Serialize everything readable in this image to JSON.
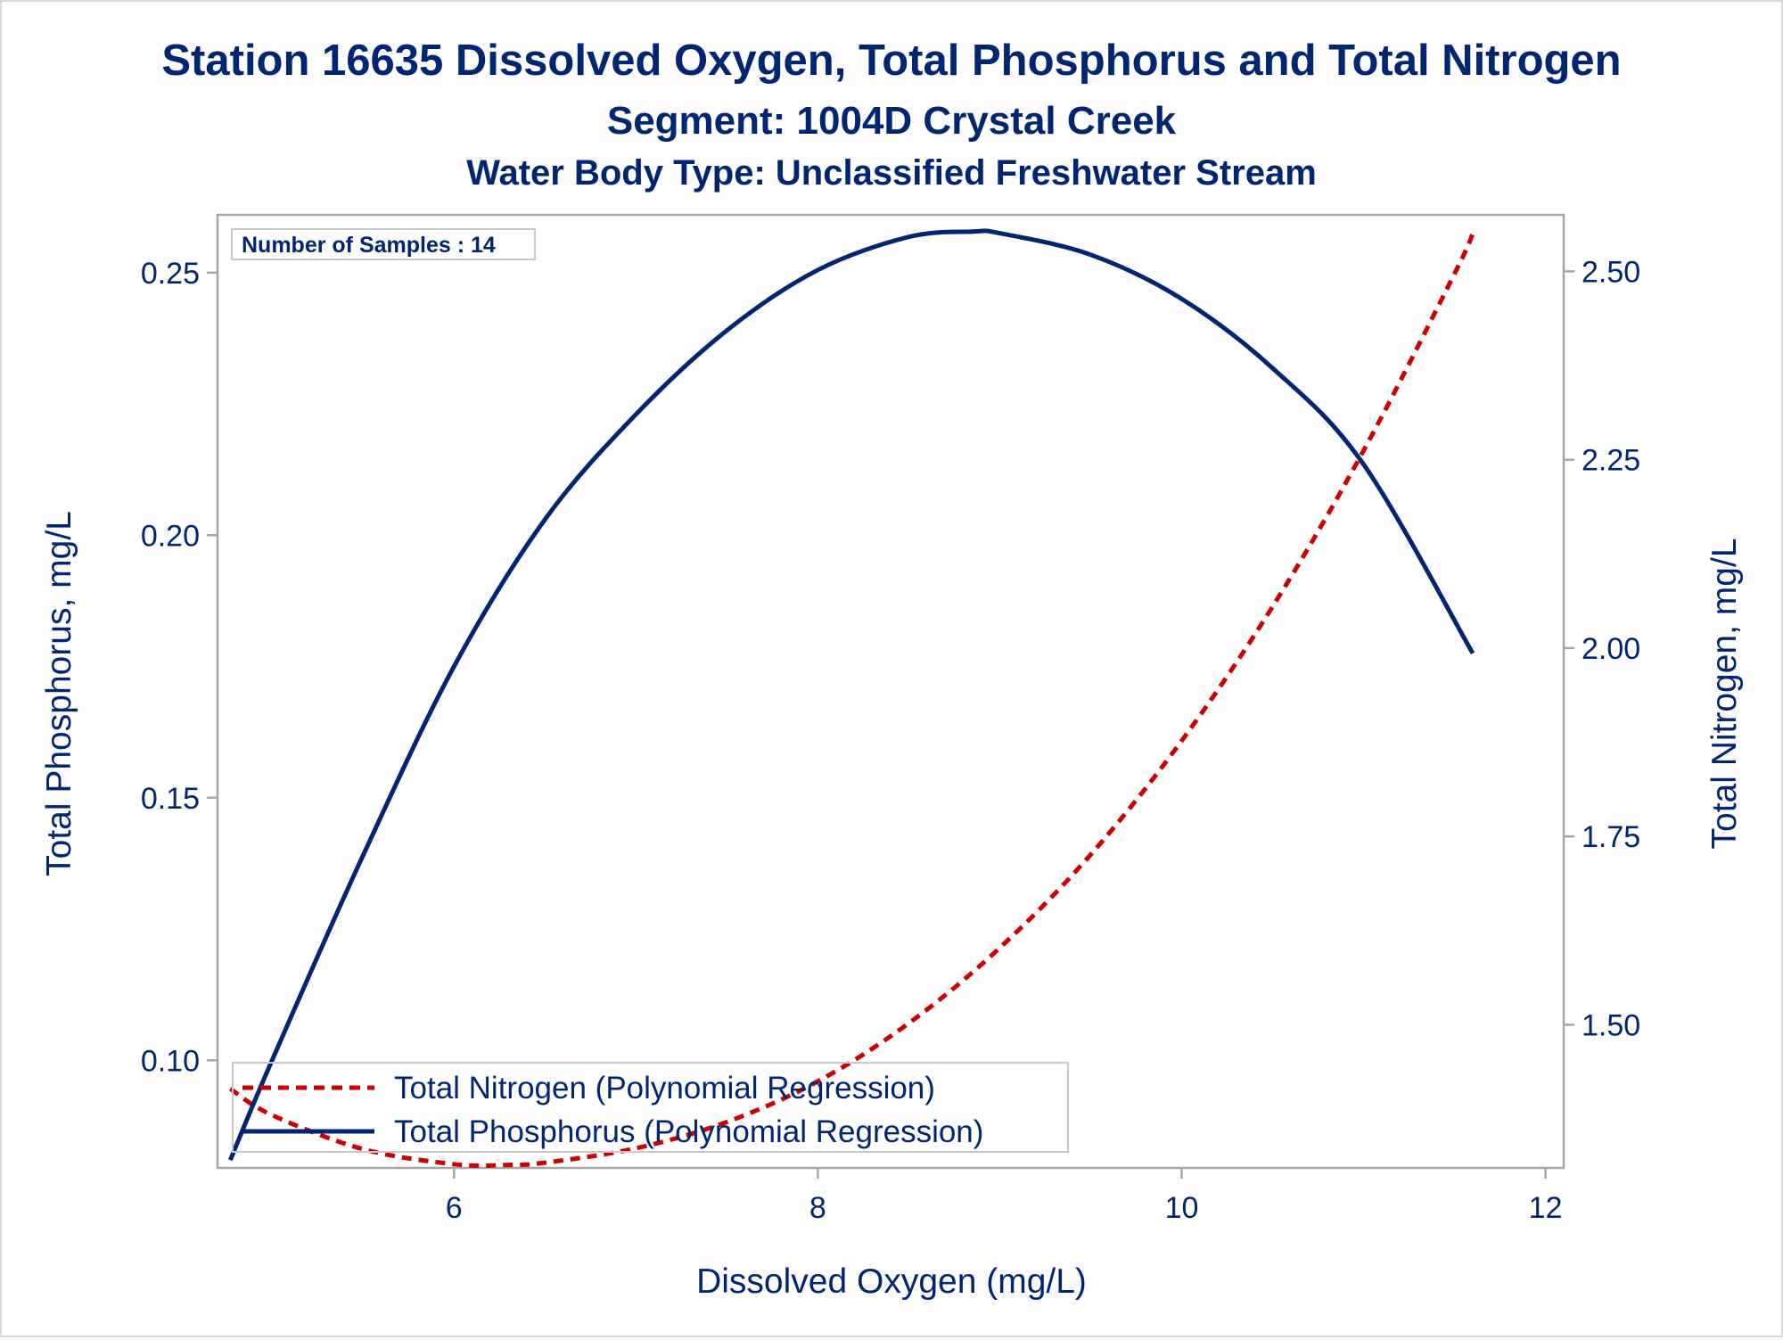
{
  "chart_data": {
    "type": "line",
    "title": "Station 16635  Dissolved Oxygen, Total Phosphorus and Total Nitrogen",
    "subtitle": "Segment: 1004D  Crystal Creek",
    "subtitle2": "Water Body Type: Unclassified Freshwater Stream",
    "inset": "Number of Samples : 14",
    "xlabel": "Dissolved Oxygen (mg/L)",
    "ylabel_left": "Total Phosphorus, mg/L",
    "ylabel_right": "Total Nitrogen, mg/L",
    "xlim": [
      4.7,
      12.1
    ],
    "ylim_left": [
      0.0795,
      0.261
    ],
    "ylim_right": [
      1.31,
      2.575
    ],
    "x_ticks": [
      "6",
      "8",
      "10",
      "12"
    ],
    "y_left_ticks": [
      "0.10",
      "0.15",
      "0.20",
      "0.25"
    ],
    "y_right_ticks": [
      "1.50",
      "1.75",
      "2.00",
      "2.25",
      "2.50"
    ],
    "grid": false,
    "legend_position": "bottom-left inside",
    "series": [
      {
        "name": "Total Nitrogen (Polynomial Regression)",
        "axis": "right",
        "color": "#cc0000",
        "style": "dashed",
        "x": [
          4.77,
          5.0,
          5.5,
          6.0,
          6.3,
          6.5,
          7.0,
          7.5,
          8.0,
          8.5,
          9.0,
          9.5,
          10.0,
          10.5,
          11.0,
          11.5,
          11.6
        ],
        "y": [
          1.415,
          1.38,
          1.335,
          1.315,
          1.314,
          1.317,
          1.336,
          1.371,
          1.425,
          1.502,
          1.602,
          1.726,
          1.877,
          2.055,
          2.262,
          2.497,
          2.55
        ]
      },
      {
        "name": "Total Phosphorus (Polynomial Regression)",
        "axis": "left",
        "color": "#002673",
        "style": "solid",
        "x": [
          4.77,
          5.0,
          5.5,
          6.0,
          6.5,
          7.0,
          7.5,
          8.0,
          8.5,
          8.85,
          9.0,
          9.5,
          10.0,
          10.5,
          11.0,
          11.6
        ],
        "y": [
          0.081,
          0.1,
          0.139,
          0.175,
          0.203,
          0.223,
          0.239,
          0.2505,
          0.2568,
          0.2578,
          0.2575,
          0.2534,
          0.245,
          0.2318,
          0.2135,
          0.1775
        ]
      }
    ]
  }
}
